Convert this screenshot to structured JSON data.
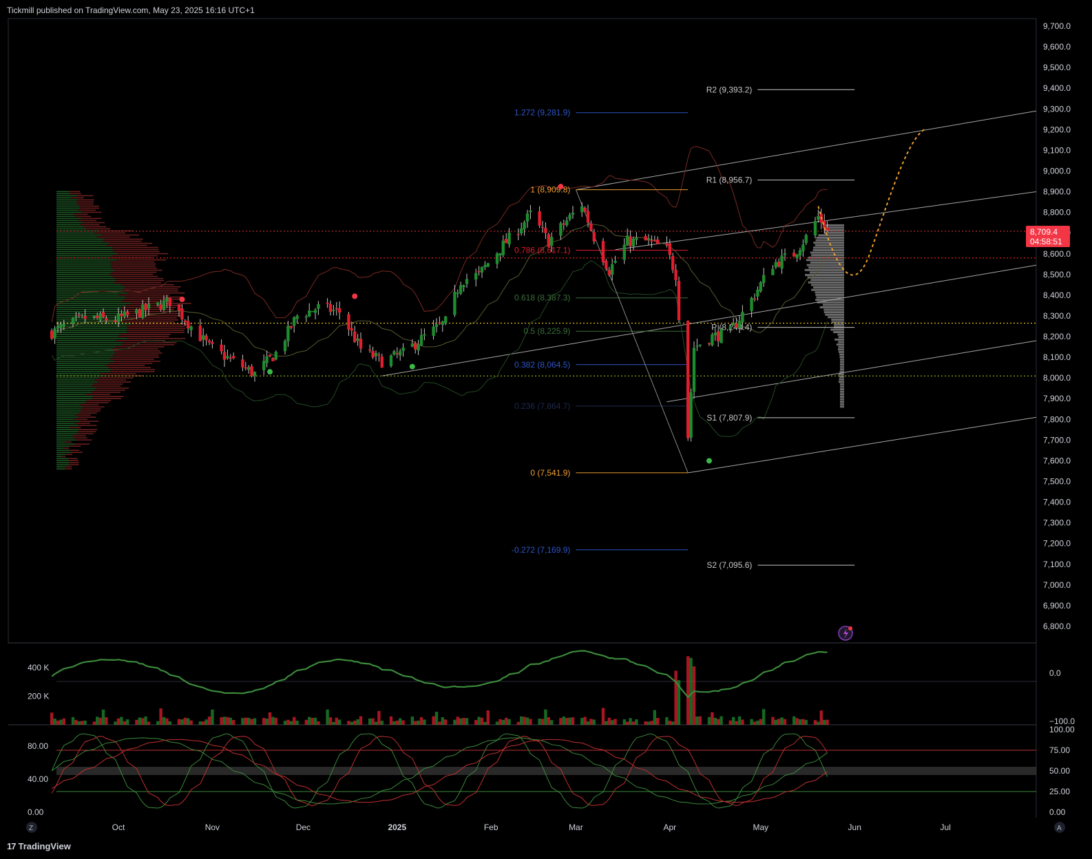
{
  "header": {
    "published": "Tickmill published on TradingView.com, May 23, 2025 16:16 UTC+1"
  },
  "brand": {
    "name": "TradingView",
    "icon": "tradingview-logo-icon"
  },
  "colors": {
    "bull": "#1e8c2e",
    "bear": "#e01e2e",
    "text": "#d1d4dc",
    "fib_blue": "#2f55c8",
    "fib_green": "#3b6e3b",
    "fib_orange": "#f0a030",
    "price_tag": "#f23645",
    "yellow_dotted": "#e0c020",
    "green_dotted": "#a0c020",
    "red_dotted": "#c03030"
  },
  "chart_data": {
    "type": "candlestick",
    "symbol_note": "",
    "time_axis": [
      "Oct",
      "Nov",
      "Dec",
      "2025",
      "Feb",
      "Mar",
      "Apr",
      "May",
      "Jun",
      "Jul"
    ],
    "price_axis": [
      "9,700.0",
      "9,600.0",
      "9,500.0",
      "9,400.0",
      "9,300.0",
      "9,200.0",
      "9,100.0",
      "9,000.0",
      "8,900.0",
      "8,800.0",
      "8,700.0",
      "8,600.0",
      "8,500.0",
      "8,400.0",
      "8,300.0",
      "8,200.0",
      "8,100.0",
      "8,000.0",
      "7,900.0",
      "7,800.0",
      "7,700.0",
      "7,600.0",
      "7,500.0",
      "7,400.0",
      "7,300.0",
      "7,200.0",
      "7,100.0",
      "7,000.0",
      "6,900.0",
      "6,800.0"
    ],
    "ylim": [
      6760,
      9730
    ],
    "last_price": {
      "value": "8,709.4",
      "countdown": "04:58:51"
    },
    "anchors": [
      [
        "2024-09-09",
        8220
      ],
      [
        "2024-09-20",
        8290
      ],
      [
        "2024-09-30",
        8280
      ],
      [
        "2024-10-10",
        8330
      ],
      [
        "2024-10-18",
        8370
      ],
      [
        "2024-10-25",
        8250
      ],
      [
        "2024-10-31",
        8150
      ],
      [
        "2024-11-08",
        8080
      ],
      [
        "2024-11-15",
        8020
      ],
      [
        "2024-11-22",
        8120
      ],
      [
        "2024-11-29",
        8300
      ],
      [
        "2024-12-06",
        8340
      ],
      [
        "2024-12-13",
        8320
      ],
      [
        "2024-12-20",
        8140
      ],
      [
        "2024-12-27",
        8080
      ],
      [
        "2025-01-03",
        8120
      ],
      [
        "2025-01-10",
        8200
      ],
      [
        "2025-01-17",
        8270
      ],
      [
        "2025-01-22",
        8470
      ],
      [
        "2025-01-28",
        8500
      ],
      [
        "2025-02-03",
        8610
      ],
      [
        "2025-02-10",
        8720
      ],
      [
        "2025-02-14",
        8790
      ],
      [
        "2025-02-20",
        8660
      ],
      [
        "2025-02-26",
        8760
      ],
      [
        "2025-03-03",
        8840
      ],
      [
        "2025-03-07",
        8680
      ],
      [
        "2025-03-12",
        8520
      ],
      [
        "2025-03-18",
        8660
      ],
      [
        "2025-03-25",
        8660
      ],
      [
        "2025-03-31",
        8620
      ],
      [
        "2025-04-03",
        8500
      ],
      [
        "2025-04-07",
        7720
      ],
      [
        "2025-04-09",
        8150
      ],
      [
        "2025-04-15",
        8200
      ],
      [
        "2025-04-21",
        8220
      ],
      [
        "2025-04-28",
        8380
      ],
      [
        "2025-05-05",
        8550
      ],
      [
        "2025-05-12",
        8600
      ],
      [
        "2025-05-16",
        8680
      ],
      [
        "2025-05-20",
        8780
      ],
      [
        "2025-05-22",
        8740
      ],
      [
        "2025-05-23",
        8709
      ]
    ],
    "fib_levels": [
      {
        "label": "1.272 (9,281.9)",
        "value": 9281.9,
        "color": "#2f55c8"
      },
      {
        "label": "1 (8,909.8)",
        "value": 8909.8,
        "color": "#f0a030"
      },
      {
        "label": "0.786 (8,617.1)",
        "value": 8617.1,
        "color": "#e01e2e"
      },
      {
        "label": "0.618 (8,387.3)",
        "value": 8387.3,
        "color": "#3b6e3b"
      },
      {
        "label": "0.5 (8,225.9)",
        "value": 8225.9,
        "color": "#3b6e3b"
      },
      {
        "label": "0.382 (8,064.5)",
        "value": 8064.5,
        "color": "#2f55c8"
      },
      {
        "label": "0.236 (7,864.7)",
        "value": 7864.7,
        "color": "#1e2a50"
      },
      {
        "label": "0 (7,541.9)",
        "value": 7541.9,
        "color": "#f0a030"
      },
      {
        "label": "-0.272 (7,169.9)",
        "value": 7169.9,
        "color": "#2f55c8"
      }
    ],
    "pivots": [
      {
        "label": "R2 (9,393.2)",
        "value": 9393.2
      },
      {
        "label": "R1 (8,956.7)",
        "value": 8956.7
      },
      {
        "label": "P (8,244.4)",
        "value": 8244.4
      },
      {
        "label": "S1 (7,807.9)",
        "value": 7807.9
      },
      {
        "label": "S2 (7,095.6)",
        "value": 7095.6
      }
    ],
    "horizontal_lines": [
      {
        "value": 8709.4,
        "style": "dotted",
        "color": "#c03030"
      },
      {
        "value": 8580,
        "style": "dotted",
        "color": "#e02020"
      },
      {
        "value": 8265,
        "style": "dotted",
        "color": "#e0c020"
      },
      {
        "value": 8010,
        "style": "dotted",
        "color": "#a0c020"
      }
    ],
    "volume_panel": {
      "left_axis": [
        "400 K",
        "200 K"
      ],
      "right_axis": [
        "0.0",
        "−100.0"
      ]
    },
    "oscillator_panel": {
      "left_axis": [
        "80.00",
        "40.00",
        "0.00"
      ],
      "right_axis": [
        "100.00",
        "75.00",
        "50.00",
        "25.00",
        "0.00"
      ]
    },
    "grid": false
  }
}
